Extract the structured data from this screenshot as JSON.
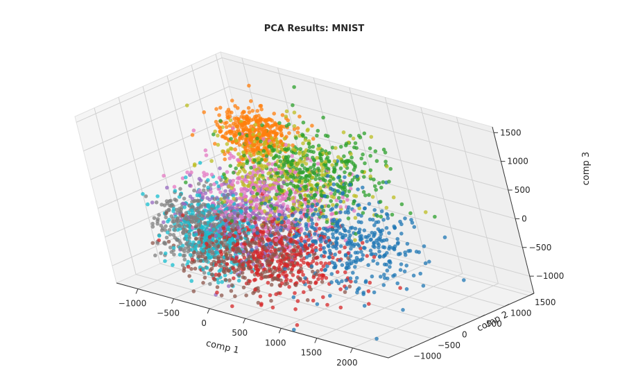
{
  "chart_data": {
    "type": "scatter",
    "projection": "3d",
    "title": "PCA Results: MNIST",
    "xlabel": "comp 1",
    "ylabel": "comp 2",
    "zlabel": "comp 3",
    "xlim": [
      -1300,
      2500
    ],
    "ylim": [
      -1400,
      1600
    ],
    "zlim": [
      -1300,
      1600
    ],
    "x_ticks": [
      -1000,
      -500,
      0,
      500,
      1000,
      1500,
      2000
    ],
    "y_ticks": [
      -1000,
      -500,
      0,
      500,
      1000,
      1500
    ],
    "z_ticks": [
      -1000,
      -500,
      0,
      500,
      1000,
      1500
    ],
    "x_tick_labels": [
      "−1000",
      "−500",
      "0",
      "500",
      "1000",
      "1500",
      "2000"
    ],
    "y_tick_labels": [
      "−1000",
      "−500",
      "0",
      "500",
      "1000",
      "1500"
    ],
    "z_tick_labels": [
      "−1000",
      "−500",
      "0",
      "500",
      "1000",
      "1500"
    ],
    "grid": true,
    "legend": "none",
    "series": [
      {
        "color": "#1f77b4",
        "center": [
          1500,
          -300,
          0
        ],
        "spread": [
          450,
          380,
          380
        ],
        "count": 380
      },
      {
        "color": "#ff7f0e",
        "center": [
          -350,
          700,
          850
        ],
        "spread": [
          180,
          220,
          180
        ],
        "count": 380
      },
      {
        "color": "#2ca02c",
        "center": [
          750,
          200,
          750
        ],
        "spread": [
          450,
          400,
          300
        ],
        "count": 380
      },
      {
        "color": "#d62728",
        "center": [
          550,
          -550,
          -500
        ],
        "spread": [
          450,
          380,
          320
        ],
        "count": 380
      },
      {
        "color": "#9467bd",
        "center": [
          -150,
          -100,
          -300
        ],
        "spread": [
          350,
          350,
          330
        ],
        "count": 380
      },
      {
        "color": "#8c564b",
        "center": [
          300,
          -700,
          -550
        ],
        "spread": [
          400,
          350,
          300
        ],
        "count": 380
      },
      {
        "color": "#e377c2",
        "center": [
          200,
          0,
          150
        ],
        "spread": [
          400,
          380,
          380
        ],
        "count": 380
      },
      {
        "color": "#7f7f7f",
        "center": [
          -450,
          -600,
          -350
        ],
        "spread": [
          250,
          300,
          280
        ],
        "count": 380
      },
      {
        "color": "#bcbd22",
        "center": [
          350,
          250,
          500
        ],
        "spread": [
          450,
          380,
          380
        ],
        "count": 380
      },
      {
        "color": "#17becf",
        "center": [
          -350,
          -500,
          -400
        ],
        "spread": [
          220,
          300,
          350
        ],
        "count": 380
      }
    ]
  }
}
